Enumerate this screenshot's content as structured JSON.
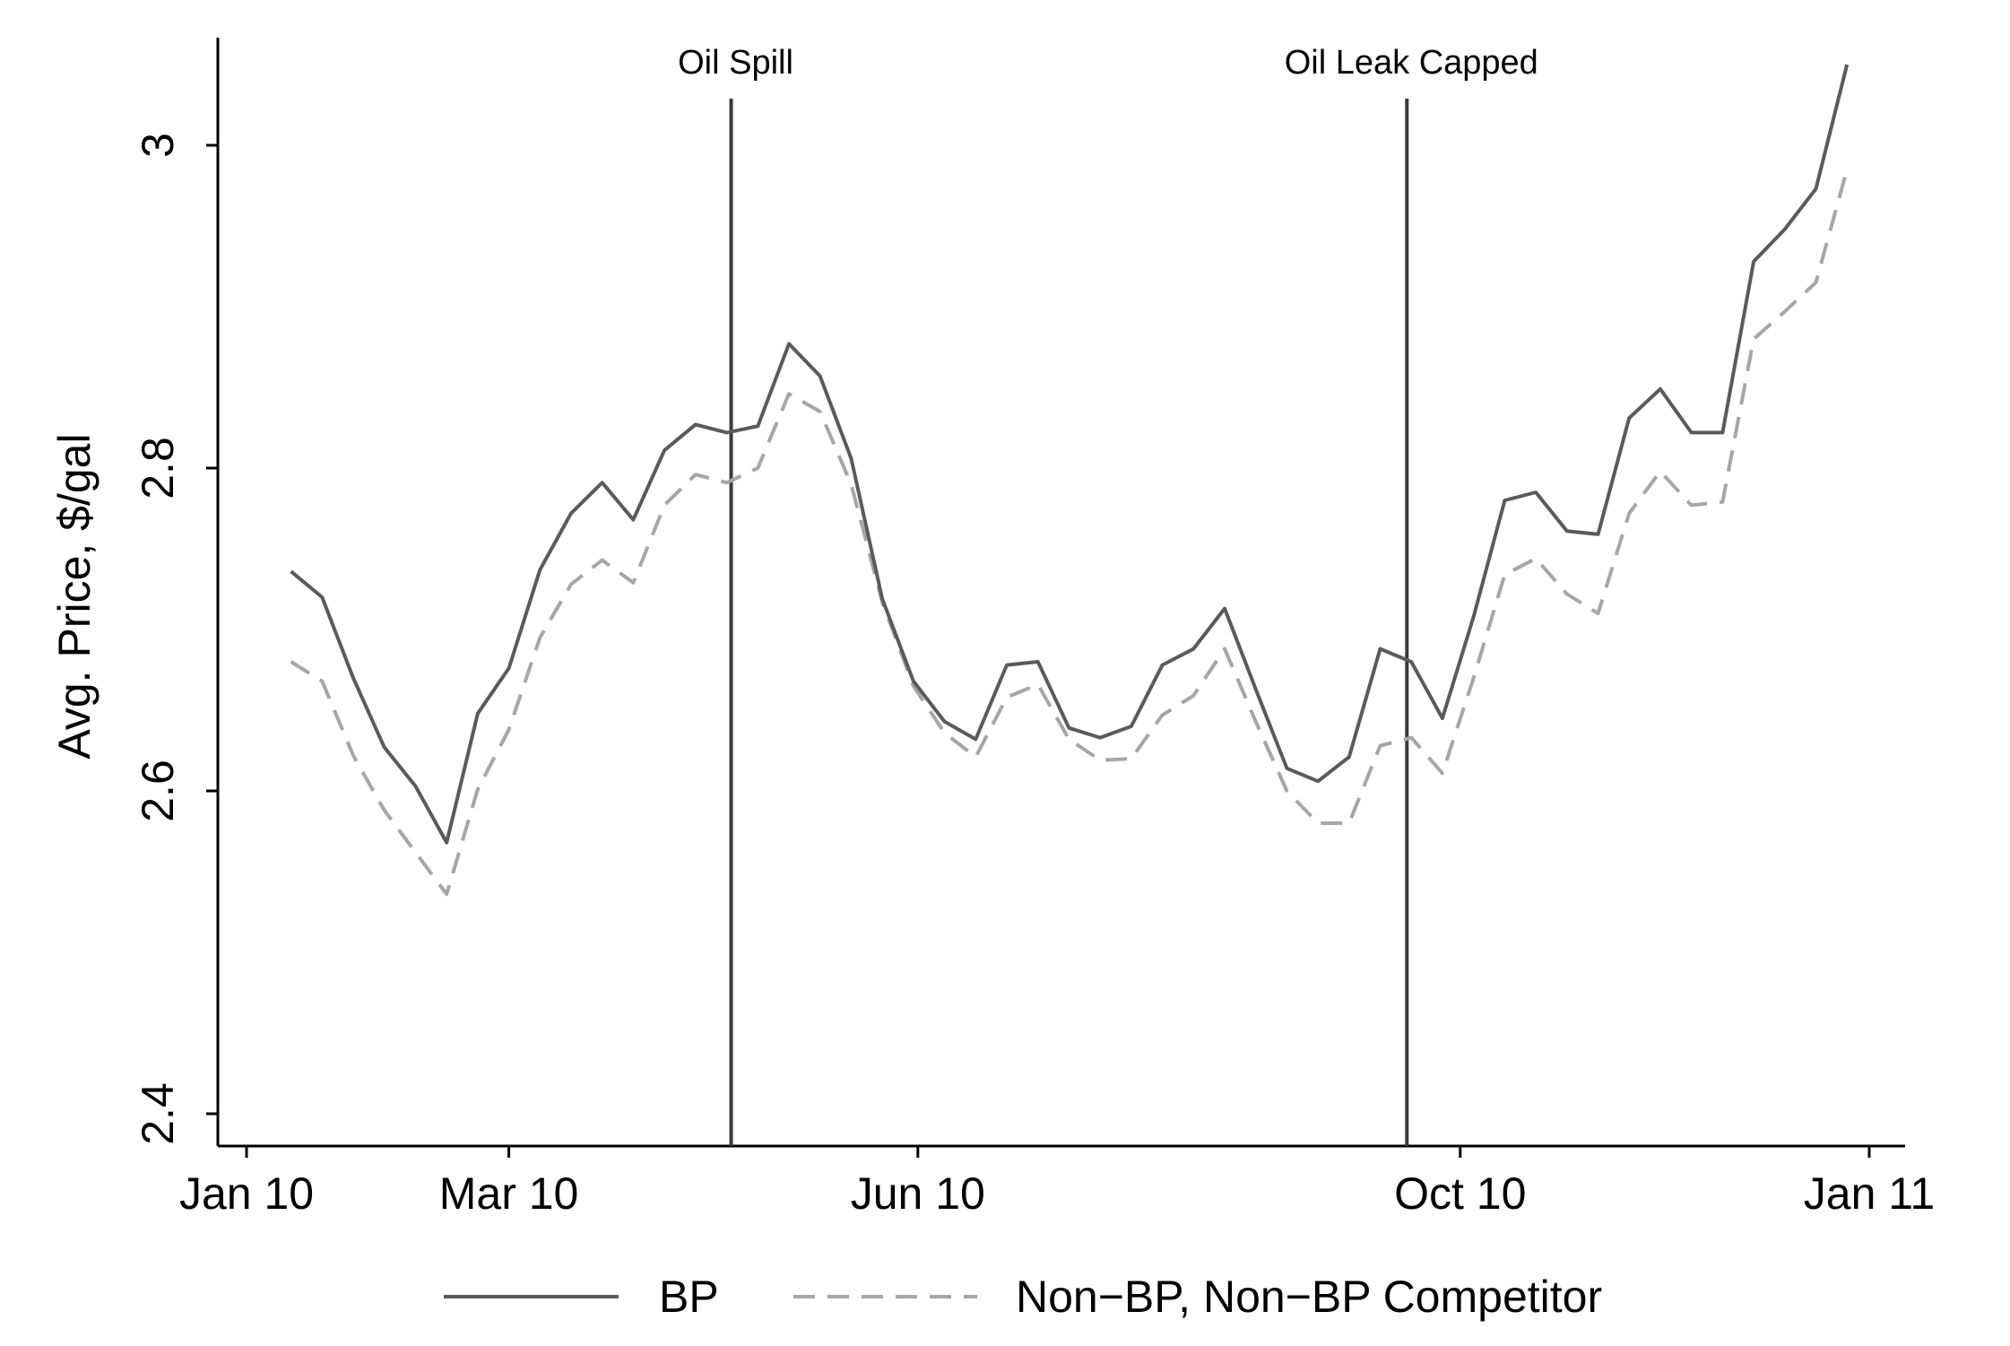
{
  "chart_data": {
    "type": "line",
    "ylabel": "Avg. Price, $/gal",
    "xlabel": "",
    "ylim": [
      2.4,
      3.05
    ],
    "yticks": [
      2.4,
      2.6,
      2.8,
      3
    ],
    "ytick_labels": [
      "2.4",
      "2.6",
      "2.8",
      "3"
    ],
    "xlim": [
      "2010-01-01",
      "2011-01-01"
    ],
    "xticks": [
      "2010-01-01",
      "2010-03-01",
      "2010-06-01",
      "2010-10-01",
      "2011-01-01"
    ],
    "xtick_labels": [
      "Jan 10",
      "Mar 10",
      "Jun 10",
      "Oct 10",
      "Jan 11"
    ],
    "grid": false,
    "legend_position": "bottom",
    "events": [
      {
        "date": "2010-04-20",
        "label": "Oil Spill"
      },
      {
        "date": "2010-09-19",
        "label": "Oil Leak Capped"
      }
    ],
    "x": [
      "2010-01-11",
      "2010-01-18",
      "2010-01-25",
      "2010-02-01",
      "2010-02-08",
      "2010-02-15",
      "2010-02-22",
      "2010-03-01",
      "2010-03-08",
      "2010-03-15",
      "2010-03-22",
      "2010-03-29",
      "2010-04-05",
      "2010-04-12",
      "2010-04-19",
      "2010-04-26",
      "2010-05-03",
      "2010-05-10",
      "2010-05-17",
      "2010-05-24",
      "2010-05-31",
      "2010-06-07",
      "2010-06-14",
      "2010-06-21",
      "2010-06-28",
      "2010-07-05",
      "2010-07-12",
      "2010-07-19",
      "2010-07-26",
      "2010-08-02",
      "2010-08-09",
      "2010-08-16",
      "2010-08-23",
      "2010-08-30",
      "2010-09-06",
      "2010-09-13",
      "2010-09-20",
      "2010-09-27",
      "2010-10-04",
      "2010-10-11",
      "2010-10-18",
      "2010-10-25",
      "2010-11-01",
      "2010-11-08",
      "2010-11-15",
      "2010-11-22",
      "2010-11-29",
      "2010-12-06",
      "2010-12-13",
      "2010-12-20",
      "2010-12-27"
    ],
    "series": [
      {
        "name": "BP",
        "color": "#5a5a5a",
        "dash": "solid",
        "values": [
          2.736,
          2.72,
          2.67,
          2.627,
          2.603,
          2.568,
          2.648,
          2.676,
          2.737,
          2.772,
          2.791,
          2.768,
          2.811,
          2.827,
          2.822,
          2.826,
          2.877,
          2.857,
          2.806,
          2.719,
          2.668,
          2.643,
          2.632,
          2.678,
          2.68,
          2.639,
          2.633,
          2.64,
          2.678,
          2.688,
          2.713,
          2.663,
          2.614,
          2.606,
          2.621,
          2.688,
          2.68,
          2.645,
          2.708,
          2.78,
          2.785,
          2.761,
          2.759,
          2.831,
          2.849,
          2.822,
          2.822,
          2.928,
          2.948,
          2.973,
          3.05
        ]
      },
      {
        "name": "Non−BP, Non−BP Competitor",
        "color": "#a6a6a6",
        "dash": "dashed",
        "values": [
          2.68,
          2.668,
          2.622,
          2.588,
          2.562,
          2.536,
          2.601,
          2.638,
          2.695,
          2.728,
          2.743,
          2.729,
          2.777,
          2.796,
          2.791,
          2.8,
          2.846,
          2.835,
          2.79,
          2.717,
          2.665,
          2.636,
          2.621,
          2.658,
          2.666,
          2.632,
          2.619,
          2.62,
          2.647,
          2.659,
          2.688,
          2.643,
          2.6,
          2.58,
          2.58,
          2.628,
          2.633,
          2.611,
          2.67,
          2.734,
          2.744,
          2.722,
          2.71,
          2.772,
          2.798,
          2.777,
          2.779,
          2.88,
          2.897,
          2.915,
          2.985
        ]
      }
    ]
  },
  "colors": {
    "axis": "#000000",
    "event_line": "#3a3a3a"
  }
}
